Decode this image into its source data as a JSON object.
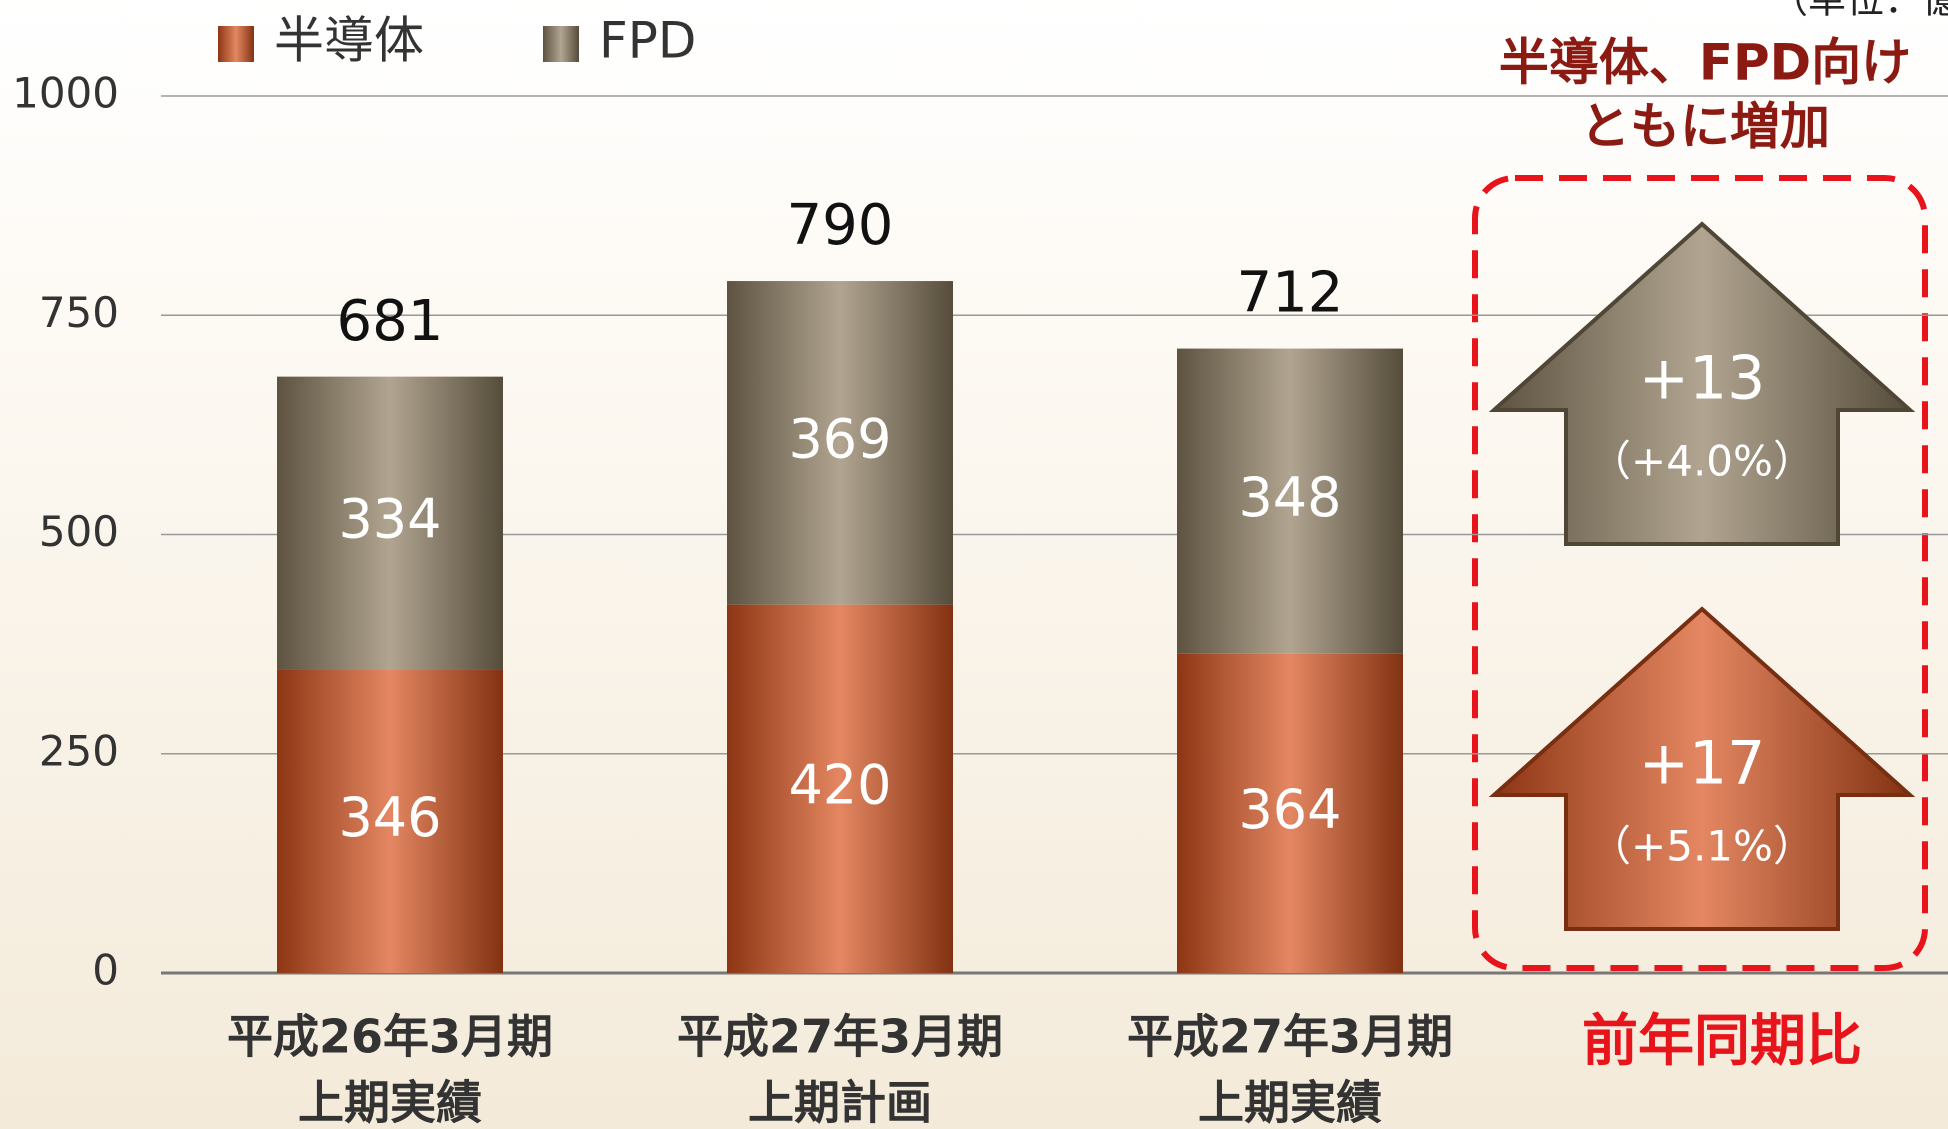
{
  "chart_data": {
    "type": "stacked_bar",
    "unit_note": "（単位：億円）",
    "categories": [
      [
        "平成26年3月期",
        "上期実績"
      ],
      [
        "平成27年3月期",
        "上期計画"
      ],
      [
        "平成27年3月期",
        "上期実績"
      ]
    ],
    "series": [
      {
        "name": "半導体",
        "color": "#d9531e",
        "values": [
          346,
          420,
          364
        ]
      },
      {
        "name": "FPD",
        "color": "#8f7f62",
        "values": [
          334,
          369,
          348
        ]
      }
    ],
    "totals": [
      681,
      790,
      712
    ],
    "ylim": [
      0,
      1000
    ],
    "yticks": [
      0,
      250,
      500,
      750,
      1000
    ],
    "grid": true,
    "comparison": {
      "headline": [
        "半導体、FPD向け",
        "ともに増加"
      ],
      "caption": "前年同期比",
      "changes": [
        {
          "series": "FPD",
          "value": 13,
          "label": "+13",
          "percent_label": "（+4.0%）"
        },
        {
          "series": "半導体",
          "value": 17,
          "label": "+17",
          "percent_label": "（+5.1%）"
        }
      ]
    }
  }
}
